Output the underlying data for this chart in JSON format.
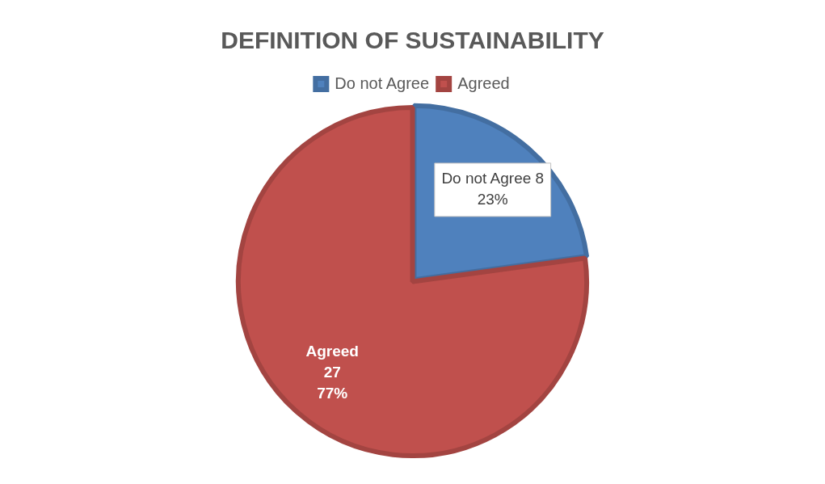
{
  "chart_data": {
    "type": "pie",
    "title": "DEFINITION OF SUSTAINABILITY",
    "categories": [
      "Do not Agree",
      "Agreed"
    ],
    "values": [
      8,
      27
    ],
    "colors": [
      "#4f81bd",
      "#c0504d"
    ],
    "value_labels": [
      "Do not Agree 8\n23%",
      "Agreed\n27\n77%"
    ],
    "legend": "top"
  }
}
